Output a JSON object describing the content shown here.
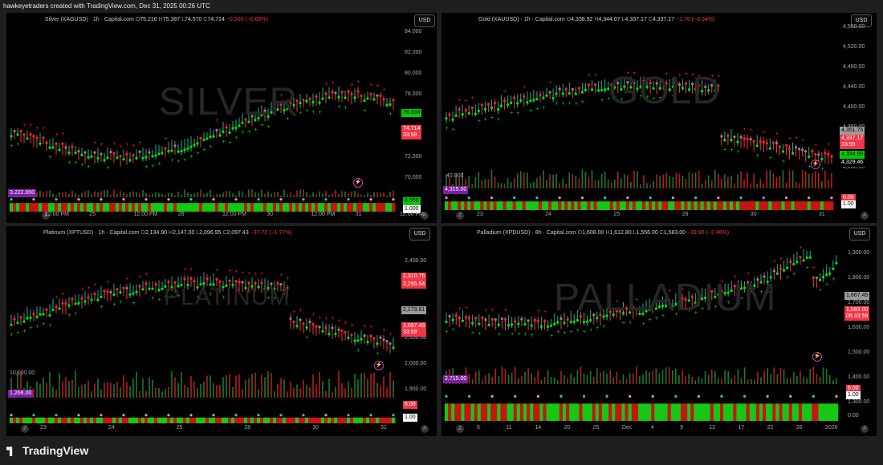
{
  "header": {
    "text": "hawkeyetraders created with TradingView.com, Dec 31, 2025 00:26 UTC"
  },
  "footer": {
    "logo": "TradingView"
  },
  "colors": {
    "up": "#22ab94",
    "down": "#f23645",
    "green": "#00e600",
    "red": "#ff2222",
    "gray": "#888888"
  },
  "panels": [
    {
      "id": "silver",
      "symbol": "Silver (XAGUSD) · 1h · Capital.com",
      "o_label": "O",
      "o": "75.216",
      "h_label": "H",
      "h": "75.387",
      "l_label": "L",
      "l": "74.570",
      "c_label": "C",
      "c": "74.714",
      "change": "−0.500 (−0.66%)",
      "currency": "USD",
      "watermark": "SILVER",
      "y_ticks": [
        "84.000",
        "82.000",
        "80.000",
        "78.000",
        "76.000",
        "74.000",
        "72.000",
        "70.000"
      ],
      "price_labels": [
        {
          "text": "76.034",
          "bg": "#00cc00",
          "fg": "#000000"
        },
        {
          "text": "74.714\n33:59",
          "bg": "#f23645",
          "fg": "#ffffff"
        }
      ],
      "volume_label": "3.222.000",
      "osc_labels": [
        "6.000",
        "1.000"
      ],
      "x_ticks": [
        "12:00 PM",
        "25",
        "12:00 PM",
        "28",
        "12:00 PM",
        "30",
        "12:00 PM",
        "31",
        "12:00 PM"
      ]
    },
    {
      "id": "gold",
      "symbol": "Gold (XAUUSD) · 1h · Capital.com",
      "o_label": "O",
      "o": "4,338.92",
      "h_label": "H",
      "h": "4,344.07",
      "l_label": "L",
      "l": "4,337.17",
      "c_label": "C",
      "c": "4,337.17",
      "change": "−1.76 (−0.04%)",
      "currency": "USD",
      "watermark": "GOLD",
      "y_ticks": [
        "4,560.00",
        "4,520.00",
        "4,480.00",
        "4,440.00",
        "4,400.00",
        "4,360.00",
        "4,320.00",
        "4,280.00"
      ],
      "price_labels": [
        {
          "text": "4,351.75",
          "bg": "#9a9a9a",
          "fg": "#000000"
        },
        {
          "text": "4,337.17\n33:59",
          "bg": "#f23645",
          "fg": "#ffffff"
        },
        {
          "text": "4,334.99",
          "bg": "#00cc00",
          "fg": "#000000"
        },
        {
          "text": "4,329.46",
          "bg": "#000000",
          "fg": "#ffffff"
        }
      ],
      "volume_top": "40,000",
      "volume_label": "4,315.00",
      "osc_labels": [
        "6.00",
        "1.00"
      ],
      "x_ticks": [
        "23",
        "24",
        "25",
        "28",
        "30",
        "31"
      ]
    },
    {
      "id": "platinum",
      "symbol": "Platinum (XPTUSD) · 1h · Capital.com",
      "o_label": "O",
      "o": "2,134.90",
      "h_label": "H",
      "h": "2,147.00",
      "l_label": "L",
      "l": "2,096.95",
      "c_label": "C",
      "c": "2,097.43",
      "change": "−37.72 (−1.77%)",
      "currency": "USD",
      "watermark": "PLATINUM",
      "y_ticks": [
        "2,400.00",
        "2,300.00",
        "2,200.00",
        "2,100.00",
        "2,000.00",
        "1,900.00"
      ],
      "price_labels": [
        {
          "text": "2,310.76",
          "bg": "#f23645",
          "fg": "#ffffff"
        },
        {
          "text": "2,295.54",
          "bg": "#f23645",
          "fg": "#ffffff"
        },
        {
          "text": "2,173.81",
          "bg": "#9a9a9a",
          "fg": "#000000"
        },
        {
          "text": "2,097.43\n33:59",
          "bg": "#f23645",
          "fg": "#ffffff"
        }
      ],
      "volume_top": "10,000.00",
      "volume_label": "1,266.00",
      "osc_labels": [
        "6.00",
        "1.00"
      ],
      "x_ticks": [
        "23",
        "24",
        "25",
        "28",
        "30",
        "31"
      ]
    },
    {
      "id": "palladium",
      "symbol": "Palladium (XPDUSD) · 8h · Capital.com",
      "o_label": "O",
      "o": "1,608.00",
      "h_label": "H",
      "h": "1,612.80",
      "l_label": "L",
      "l": "1,556.00",
      "c_label": "C",
      "c": "1,583.00",
      "change": "−39.90 (−2.46%)",
      "currency": "USD",
      "watermark": "PALLADIUM",
      "y_ticks": [
        "1,900.00",
        "1,800.00",
        "1,700.00",
        "1,600.00",
        "1,500.00",
        "1,400.00",
        "1,300.00"
      ],
      "price_labels": [
        {
          "text": "1,667.45",
          "bg": "#9a9a9a",
          "fg": "#000000"
        },
        {
          "text": "1,583.00\n06:33:59",
          "bg": "#f23645",
          "fg": "#ffffff"
        }
      ],
      "volume_label": "2,715.00",
      "osc_labels": [
        "6.00",
        "1.00",
        "0.00"
      ],
      "x_ticks": [
        "6",
        "11",
        "14",
        "20",
        "25",
        "Dec",
        "4",
        "9",
        "12",
        "17",
        "22",
        "26",
        "2026"
      ]
    }
  ]
}
